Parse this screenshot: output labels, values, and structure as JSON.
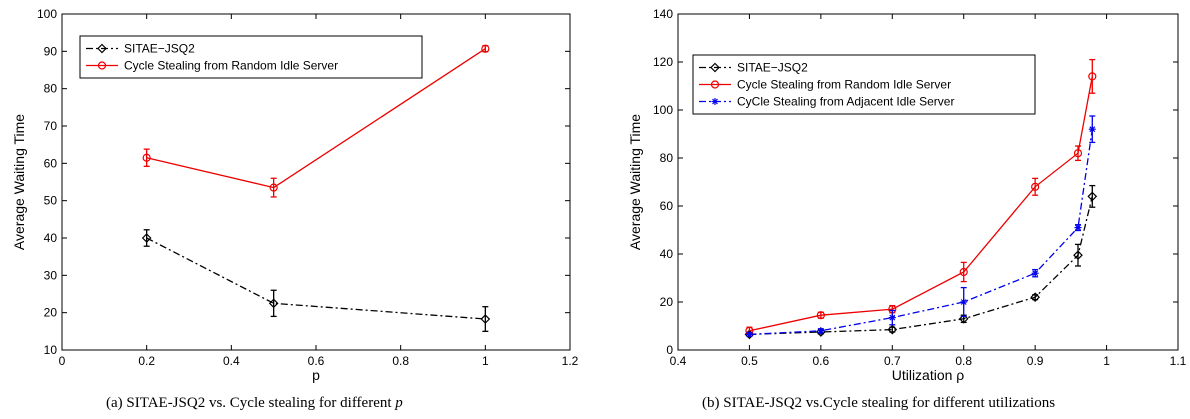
{
  "captions": {
    "a_text": "(a) SITAE-JSQ2 vs. Cycle stealing for different ",
    "a_var": "p",
    "b_text": "(b) SITAE-JSQ2 vs.Cycle stealing for different utilizations"
  },
  "chart_data": [
    {
      "type": "line",
      "xlabel": "p",
      "ylabel": "Average Waiting Time",
      "xlim": [
        0,
        1.2
      ],
      "ylim": [
        10,
        100
      ],
      "xticks": [
        0,
        0.2,
        0.4,
        0.6,
        0.8,
        1,
        1.2
      ],
      "xtick_labels": [
        "0",
        "0.2",
        "0.4",
        "0.6",
        "0.8",
        "1",
        "1.2"
      ],
      "yticks": [
        10,
        20,
        30,
        40,
        50,
        60,
        70,
        80,
        90,
        100
      ],
      "ytick_labels": [
        "10",
        "20",
        "30",
        "40",
        "50",
        "60",
        "70",
        "80",
        "90",
        "100"
      ],
      "grid": false,
      "legend_position": "top-left",
      "series": [
        {
          "name": "SITAE−JSQ2",
          "color": "#000000",
          "line_style": "dashdot",
          "marker": "diamond",
          "x": [
            0.2,
            0.5,
            1.0
          ],
          "y": [
            40,
            22.5,
            18.3
          ],
          "err": [
            2.2,
            3.5,
            3.3
          ]
        },
        {
          "name": "Cycle Stealing from Random Idle Server",
          "color": "#ee0000",
          "line_style": "solid",
          "marker": "circle",
          "x": [
            0.2,
            0.5,
            1.0
          ],
          "y": [
            61.5,
            53.5,
            90.7
          ],
          "err": [
            2.3,
            2.5,
            0.8
          ]
        }
      ]
    },
    {
      "type": "line",
      "xlabel": "Utilization ρ",
      "ylabel": "Average Waiting Time",
      "xlim": [
        0.4,
        1.1
      ],
      "ylim": [
        0,
        140
      ],
      "xticks": [
        0.4,
        0.5,
        0.6,
        0.7,
        0.8,
        0.9,
        1.0,
        1.1
      ],
      "xtick_labels": [
        "0.4",
        "0.5",
        "0.6",
        "0.7",
        "0.8",
        "0.9",
        "1",
        "1.1"
      ],
      "yticks": [
        0,
        20,
        40,
        60,
        80,
        100,
        120,
        140
      ],
      "ytick_labels": [
        "0",
        "20",
        "40",
        "60",
        "80",
        "100",
        "120",
        "140"
      ],
      "grid": false,
      "legend_position": "top-left",
      "series": [
        {
          "name": "SITAE−JSQ2",
          "color": "#000000",
          "line_style": "dashdot",
          "marker": "diamond",
          "x": [
            0.5,
            0.6,
            0.7,
            0.8,
            0.9,
            0.96,
            0.98
          ],
          "y": [
            6.5,
            7.5,
            8.5,
            13,
            22,
            39.5,
            64
          ],
          "err": [
            0.8,
            0.8,
            1.0,
            1.5,
            1.0,
            4.5,
            4.5
          ]
        },
        {
          "name": "Cycle Stealing from Random Idle Server",
          "color": "#ee0000",
          "line_style": "solid",
          "marker": "circle",
          "x": [
            0.5,
            0.6,
            0.7,
            0.8,
            0.9,
            0.96,
            0.98
          ],
          "y": [
            8,
            14.5,
            17,
            32.5,
            68,
            82,
            114
          ],
          "err": [
            1.5,
            1.2,
            1.5,
            4,
            3.5,
            3,
            7
          ]
        },
        {
          "name": "CyCle Stealing from Adjacent Idle Server",
          "color": "#0000ee",
          "line_style": "dashdot",
          "marker": "star",
          "x": [
            0.5,
            0.6,
            0.7,
            0.8,
            0.9,
            0.96,
            0.98
          ],
          "y": [
            6.5,
            8,
            13.5,
            20,
            32,
            51,
            92
          ],
          "err": [
            0.8,
            0.8,
            3,
            6,
            1.5,
            1.2,
            5.5
          ]
        }
      ]
    }
  ]
}
